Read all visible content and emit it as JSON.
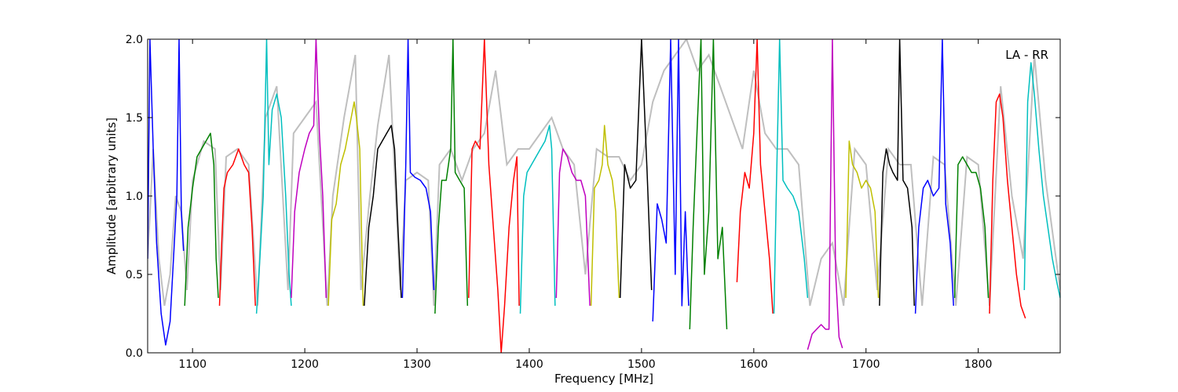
{
  "chart_data": {
    "type": "line",
    "title": "",
    "xlabel": "Frequency [MHz]",
    "ylabel": "Amplitude [arbitrary units]",
    "xlim": [
      1060,
      1873
    ],
    "ylim": [
      0.0,
      2.0
    ],
    "xticks": [
      1100,
      1200,
      1300,
      1400,
      1500,
      1600,
      1700,
      1800
    ],
    "yticks": [
      0.0,
      0.5,
      1.0,
      1.5,
      2.0
    ],
    "xtick_labels": [
      "1100",
      "1200",
      "1300",
      "1400",
      "1500",
      "1600",
      "1700",
      "1800"
    ],
    "ytick_labels": [
      "0.0",
      "0.5",
      "1.0",
      "1.5",
      "2.0"
    ],
    "annotation": "LA - RR",
    "grid": false,
    "colors": {
      "b": "#0000ff",
      "g": "#008000",
      "r": "#ff0000",
      "c": "#00bfbf",
      "m": "#bf00bf",
      "y": "#bfbf00",
      "k": "#000000",
      "envelope": "#bfbfbf"
    },
    "envelope": {
      "name": "",
      "x": [
        1060,
        1065,
        1070,
        1075,
        1080,
        1085,
        1090,
        1095,
        1100,
        1110,
        1120,
        1125,
        1130,
        1140,
        1150,
        1158,
        1165,
        1175,
        1185,
        1190,
        1200,
        1210,
        1220,
        1225,
        1235,
        1245,
        1250,
        1258,
        1265,
        1275,
        1285,
        1290,
        1300,
        1310,
        1315,
        1320,
        1330,
        1340,
        1350,
        1360,
        1370,
        1380,
        1390,
        1400,
        1410,
        1420,
        1430,
        1440,
        1450,
        1460,
        1470,
        1480,
        1490,
        1500,
        1510,
        1520,
        1530,
        1540,
        1550,
        1560,
        1570,
        1580,
        1590,
        1600,
        1610,
        1620,
        1630,
        1640,
        1650,
        1660,
        1670,
        1680,
        1690,
        1700,
        1710,
        1720,
        1730,
        1740,
        1750,
        1760,
        1770,
        1780,
        1790,
        1800,
        1810,
        1820,
        1830,
        1840,
        1850,
        1860,
        1873
      ],
      "y": [
        0.6,
        1.3,
        0.6,
        0.3,
        0.5,
        1.0,
        0.9,
        0.4,
        1.1,
        1.35,
        1.3,
        0.4,
        1.25,
        1.3,
        1.2,
        0.3,
        1.5,
        1.7,
        0.4,
        1.4,
        1.5,
        1.6,
        0.3,
        1.0,
        1.5,
        1.9,
        0.4,
        1.0,
        1.45,
        1.9,
        0.4,
        1.1,
        1.15,
        1.1,
        0.3,
        1.2,
        1.3,
        1.1,
        1.3,
        1.4,
        1.8,
        1.2,
        1.3,
        1.3,
        1.4,
        1.5,
        1.3,
        1.2,
        0.5,
        1.3,
        1.25,
        1.25,
        1.1,
        1.2,
        1.6,
        1.8,
        1.9,
        2.0,
        1.8,
        1.9,
        1.7,
        1.5,
        1.3,
        1.8,
        1.4,
        1.3,
        1.3,
        1.2,
        0.3,
        0.6,
        0.7,
        0.3,
        1.3,
        1.2,
        0.4,
        1.3,
        1.2,
        1.2,
        0.3,
        1.25,
        1.2,
        0.3,
        1.25,
        1.2,
        0.3,
        1.7,
        1.0,
        0.6,
        1.9,
        1.1,
        0.4
      ]
    },
    "series": [
      {
        "name": "",
        "color": "b",
        "x": [
          1060,
          1062,
          1065,
          1068,
          1072,
          1076,
          1080,
          1083,
          1086,
          1088,
          1090,
          1092
        ],
        "y": [
          0.6,
          2.0,
          1.3,
          0.7,
          0.25,
          0.05,
          0.2,
          0.6,
          1.0,
          2.0,
          0.9,
          0.65
        ]
      },
      {
        "name": "",
        "color": "g",
        "x": [
          1093,
          1096,
          1100,
          1104,
          1108,
          1112,
          1116,
          1119,
          1121,
          1123
        ],
        "y": [
          0.3,
          0.8,
          1.05,
          1.25,
          1.3,
          1.35,
          1.4,
          1.2,
          0.6,
          0.35
        ]
      },
      {
        "name": "",
        "color": "r",
        "x": [
          1124,
          1126,
          1128,
          1131,
          1136,
          1141,
          1146,
          1150,
          1153,
          1156
        ],
        "y": [
          0.3,
          0.7,
          1.05,
          1.15,
          1.2,
          1.3,
          1.2,
          1.15,
          0.8,
          0.3
        ]
      },
      {
        "name": "",
        "color": "c",
        "x": [
          1157,
          1160,
          1163,
          1166,
          1168,
          1171,
          1175,
          1179,
          1183,
          1186,
          1188
        ],
        "y": [
          0.25,
          0.6,
          1.0,
          2.0,
          1.2,
          1.55,
          1.65,
          1.5,
          1.0,
          0.5,
          0.3
        ]
      },
      {
        "name": "",
        "color": "m",
        "x": [
          1188,
          1191,
          1195,
          1200,
          1204,
          1208,
          1210,
          1213,
          1216,
          1219
        ],
        "y": [
          0.35,
          0.9,
          1.15,
          1.3,
          1.4,
          1.45,
          2.0,
          1.4,
          1.0,
          0.35
        ]
      },
      {
        "name": "",
        "color": "y",
        "x": [
          1221,
          1224,
          1228,
          1232,
          1236,
          1240,
          1244,
          1246,
          1249,
          1252
        ],
        "y": [
          0.3,
          0.85,
          0.95,
          1.2,
          1.3,
          1.45,
          1.6,
          1.5,
          1.3,
          0.3
        ]
      },
      {
        "name": "",
        "color": "k",
        "x": [
          1253,
          1257,
          1261,
          1265,
          1269,
          1273,
          1277,
          1280,
          1283,
          1286
        ],
        "y": [
          0.3,
          0.8,
          1.0,
          1.3,
          1.35,
          1.4,
          1.45,
          1.3,
          0.8,
          0.35
        ]
      },
      {
        "name": "",
        "color": "b",
        "x": [
          1287,
          1290,
          1292,
          1294,
          1298,
          1303,
          1308,
          1312,
          1315
        ],
        "y": [
          0.35,
          1.2,
          2.0,
          1.15,
          1.12,
          1.1,
          1.05,
          0.9,
          0.4
        ]
      },
      {
        "name": "",
        "color": "g",
        "x": [
          1316,
          1319,
          1322,
          1326,
          1330,
          1332,
          1334,
          1338,
          1342,
          1345
        ],
        "y": [
          0.25,
          0.8,
          1.1,
          1.1,
          1.3,
          2.0,
          1.15,
          1.1,
          1.05,
          0.3
        ]
      },
      {
        "name": "",
        "color": "r",
        "x": [
          1346,
          1349,
          1352,
          1356,
          1360,
          1364,
          1368,
          1372,
          1375,
          1378,
          1382,
          1386,
          1389,
          1391
        ],
        "y": [
          0.35,
          1.3,
          1.35,
          1.3,
          2.0,
          1.2,
          0.8,
          0.4,
          0.0,
          0.3,
          0.8,
          1.1,
          1.25,
          0.3
        ]
      },
      {
        "name": "",
        "color": "c",
        "x": [
          1392,
          1395,
          1398,
          1402,
          1406,
          1410,
          1414,
          1418,
          1420,
          1423
        ],
        "y": [
          0.25,
          1.0,
          1.15,
          1.2,
          1.25,
          1.3,
          1.35,
          1.45,
          1.3,
          0.3
        ]
      },
      {
        "name": "",
        "color": "m",
        "x": [
          1424,
          1427,
          1430,
          1434,
          1438,
          1442,
          1446,
          1450,
          1454
        ],
        "y": [
          0.35,
          1.15,
          1.3,
          1.25,
          1.15,
          1.1,
          1.1,
          1.0,
          0.3
        ]
      },
      {
        "name": "",
        "color": "y",
        "x": [
          1455,
          1458,
          1462,
          1465,
          1467,
          1470,
          1474,
          1477,
          1480
        ],
        "y": [
          0.3,
          1.05,
          1.1,
          1.2,
          1.45,
          1.2,
          1.1,
          0.9,
          0.35
        ]
      },
      {
        "name": "",
        "color": "k",
        "x": [
          1481,
          1485,
          1490,
          1495,
          1500,
          1505,
          1509
        ],
        "y": [
          0.35,
          1.2,
          1.05,
          1.1,
          2.0,
          1.15,
          0.4
        ]
      },
      {
        "name": "",
        "color": "b",
        "x": [
          1510,
          1514,
          1518,
          1522,
          1526,
          1530,
          1533,
          1536,
          1539,
          1542
        ],
        "y": [
          0.2,
          0.95,
          0.85,
          0.7,
          2.0,
          0.5,
          2.0,
          0.3,
          0.9,
          0.3
        ]
      },
      {
        "name": "",
        "color": "g",
        "x": [
          1543,
          1546,
          1550,
          1553,
          1556,
          1560,
          1564,
          1568,
          1572,
          1576
        ],
        "y": [
          0.15,
          0.8,
          1.5,
          2.0,
          0.5,
          0.9,
          2.0,
          0.6,
          0.8,
          0.15
        ]
      },
      {
        "name": "",
        "color": "r",
        "x": [
          1585,
          1588,
          1592,
          1596,
          1600,
          1603,
          1606,
          1610,
          1614,
          1617
        ],
        "y": [
          0.45,
          0.9,
          1.15,
          1.05,
          1.4,
          2.0,
          1.2,
          0.9,
          0.6,
          0.25
        ]
      },
      {
        "name": "",
        "color": "c",
        "x": [
          1618,
          1620,
          1623,
          1626,
          1630,
          1635,
          1640,
          1645,
          1648
        ],
        "y": [
          0.25,
          1.0,
          2.0,
          1.1,
          1.05,
          1.0,
          0.9,
          0.6,
          0.35
        ]
      },
      {
        "name": "",
        "color": "m",
        "x": [
          1648,
          1652,
          1656,
          1660,
          1664,
          1667,
          1670,
          1673,
          1676,
          1679
        ],
        "y": [
          0.02,
          0.12,
          0.15,
          0.18,
          0.15,
          0.15,
          2.0,
          0.5,
          0.1,
          0.03
        ]
      },
      {
        "name": "",
        "color": "y",
        "x": [
          1682,
          1685,
          1688,
          1692,
          1696,
          1700,
          1704,
          1708,
          1711
        ],
        "y": [
          0.35,
          1.35,
          1.2,
          1.15,
          1.05,
          1.1,
          1.05,
          0.9,
          0.35
        ]
      },
      {
        "name": "",
        "color": "k",
        "x": [
          1712,
          1715,
          1718,
          1721,
          1724,
          1728,
          1730,
          1733,
          1737,
          1741,
          1743
        ],
        "y": [
          0.3,
          1.15,
          1.3,
          1.2,
          1.15,
          1.1,
          2.0,
          1.1,
          1.05,
          0.8,
          0.3
        ]
      },
      {
        "name": "",
        "color": "b",
        "x": [
          1744,
          1747,
          1751,
          1755,
          1760,
          1765,
          1768,
          1771,
          1775,
          1778
        ],
        "y": [
          0.25,
          0.8,
          1.05,
          1.1,
          1.0,
          1.05,
          2.0,
          0.95,
          0.7,
          0.3
        ]
      },
      {
        "name": "",
        "color": "g",
        "x": [
          1779,
          1782,
          1786,
          1790,
          1794,
          1798,
          1802,
          1806,
          1809
        ],
        "y": [
          0.35,
          1.2,
          1.25,
          1.2,
          1.15,
          1.15,
          1.05,
          0.8,
          0.35
        ]
      },
      {
        "name": "",
        "color": "r",
        "x": [
          1810,
          1813,
          1816,
          1819,
          1822,
          1826,
          1830,
          1834,
          1838,
          1842
        ],
        "y": [
          0.25,
          1.1,
          1.6,
          1.65,
          1.5,
          1.1,
          0.8,
          0.5,
          0.3,
          0.22
        ]
      },
      {
        "name": "",
        "color": "c",
        "x": [
          1841,
          1844,
          1847,
          1850,
          1854,
          1858,
          1862,
          1866,
          1870,
          1873
        ],
        "y": [
          0.4,
          1.6,
          1.85,
          1.65,
          1.3,
          1.0,
          0.8,
          0.6,
          0.45,
          0.35
        ]
      }
    ]
  }
}
